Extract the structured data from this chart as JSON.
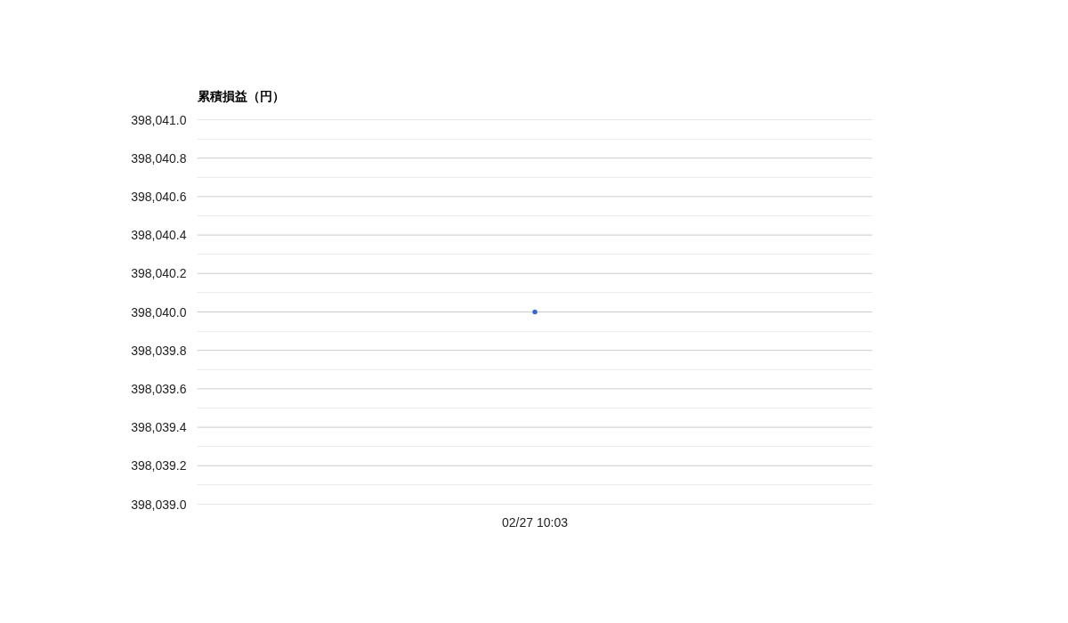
{
  "chart_data": {
    "type": "scatter",
    "title": "累積損益（円）",
    "categories": [
      "02/27 10:03"
    ],
    "series": [
      {
        "color": "#3366cc",
        "values": [
          398040.0
        ]
      }
    ],
    "ylim": [
      398039.0,
      398041.0
    ],
    "yticks": [
      {
        "value": 398039.0,
        "label": "398,039.0"
      },
      {
        "value": 398039.2,
        "label": "398,039.2"
      },
      {
        "value": 398039.4,
        "label": "398,039.4"
      },
      {
        "value": 398039.6,
        "label": "398,039.6"
      },
      {
        "value": 398039.8,
        "label": "398,039.8"
      },
      {
        "value": 398040.0,
        "label": "398,040.0"
      },
      {
        "value": 398040.2,
        "label": "398,040.2"
      },
      {
        "value": 398040.4,
        "label": "398,040.4"
      },
      {
        "value": 398040.6,
        "label": "398,040.6"
      },
      {
        "value": 398040.8,
        "label": "398,040.8"
      },
      {
        "value": 398041.0,
        "label": "398,041.0"
      }
    ],
    "grid": "y",
    "marker": "circle"
  }
}
